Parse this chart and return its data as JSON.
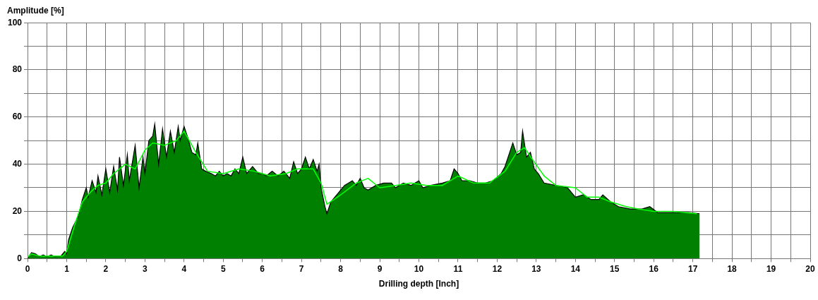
{
  "chart_data": {
    "type": "area",
    "xlabel": "Drilling depth [Inch]",
    "ylabel": "Amplitude [%]",
    "xlim": [
      0,
      20
    ],
    "ylim": [
      0,
      100
    ],
    "xticks": [
      0,
      {
        "value": 0.5,
        "label": null
      },
      1,
      {
        "value": 1.5,
        "label": null
      },
      2,
      {
        "value": 2.5,
        "label": null
      },
      3,
      {
        "value": 3.5,
        "label": null
      },
      4,
      {
        "value": 4.5,
        "label": null
      },
      5,
      {
        "value": 5.5,
        "label": null
      },
      6,
      {
        "value": 6.5,
        "label": null
      },
      7,
      {
        "value": 7.5,
        "label": null
      },
      8,
      {
        "value": 8.5,
        "label": null
      },
      9,
      {
        "value": 9.5,
        "label": null
      },
      10,
      {
        "value": 10.5,
        "label": null
      },
      11,
      {
        "value": 11.5,
        "label": null
      },
      12,
      {
        "value": 12.5,
        "label": null
      },
      13,
      {
        "value": 13.5,
        "label": null
      },
      14,
      {
        "value": 14.5,
        "label": null
      },
      15,
      {
        "value": 15.5,
        "label": null
      },
      16,
      {
        "value": 16.5,
        "label": null
      },
      17,
      {
        "value": 17.5,
        "label": null
      },
      18,
      {
        "value": 18.5,
        "label": null
      },
      19,
      {
        "value": 19.5,
        "label": null
      },
      20
    ],
    "yticks": [
      0,
      {
        "value": 10,
        "label": null
      },
      20,
      {
        "value": 30,
        "label": null
      },
      40,
      {
        "value": 50,
        "label": null
      },
      60,
      {
        "value": 70,
        "label": null
      },
      80,
      {
        "value": 90,
        "label": null
      },
      100
    ],
    "grid": true,
    "legend": false,
    "series": [
      {
        "color": "#008000",
        "x": [
          0,
          0.1,
          0.2,
          0.3,
          0.4,
          0.5,
          0.6,
          0.7,
          0.85,
          0.95,
          1.0,
          1.05,
          1.15,
          1.3,
          1.4,
          1.5,
          1.55,
          1.65,
          1.75,
          1.8,
          1.9,
          2.0,
          2.1,
          2.2,
          2.3,
          2.35,
          2.45,
          2.55,
          2.6,
          2.75,
          2.85,
          2.95,
          3.0,
          3.1,
          3.2,
          3.25,
          3.35,
          3.45,
          3.55,
          3.65,
          3.75,
          3.85,
          3.9,
          4.0,
          4.1,
          4.2,
          4.3,
          4.35,
          4.45,
          4.55,
          4.7,
          4.8,
          4.9,
          5.0,
          5.1,
          5.2,
          5.3,
          5.4,
          5.5,
          5.6,
          5.75,
          5.9,
          6.0,
          6.1,
          6.25,
          6.4,
          6.55,
          6.7,
          6.8,
          6.9,
          7.0,
          7.1,
          7.2,
          7.3,
          7.4,
          7.45,
          7.5,
          7.6,
          7.65,
          7.75,
          7.9,
          8.0,
          8.1,
          8.3,
          8.4,
          8.5,
          8.6,
          8.7,
          8.9,
          9.1,
          9.3,
          9.4,
          9.6,
          9.8,
          9.9,
          10.0,
          10.1,
          10.3,
          10.6,
          10.8,
          10.9,
          11.0,
          11.1,
          11.3,
          11.5,
          11.7,
          11.9,
          12.1,
          12.2,
          12.4,
          12.5,
          12.6,
          12.65,
          12.75,
          12.85,
          12.95,
          13.05,
          13.2,
          13.5,
          13.8,
          14.0,
          14.2,
          14.4,
          14.6,
          14.7,
          14.9,
          15.1,
          15.4,
          15.7,
          15.9,
          16.1,
          16.5,
          16.9,
          17.17
        ],
        "values": [
          0,
          2.5,
          2,
          0.8,
          1.5,
          0.8,
          1.5,
          0.8,
          1,
          3,
          2,
          8,
          13,
          18,
          25,
          30,
          26,
          33,
          28,
          35,
          27,
          38,
          28,
          39,
          29,
          43,
          31,
          44,
          33,
          48,
          30,
          43,
          36,
          50,
          52,
          57,
          40,
          55,
          43,
          54,
          45,
          56,
          50,
          56,
          51,
          45,
          44,
          49,
          38,
          37,
          36,
          35,
          37,
          35,
          36,
          35,
          38,
          36,
          43,
          36,
          39,
          36,
          36,
          35,
          37,
          35,
          37,
          34,
          41,
          36,
          38,
          43,
          38,
          42,
          37,
          40,
          30,
          22,
          19,
          24,
          27,
          29,
          31,
          33,
          31,
          34,
          30,
          29,
          31,
          32,
          32,
          30,
          32,
          31,
          32,
          33,
          30,
          31,
          32,
          33,
          38,
          36,
          33,
          33,
          32,
          32,
          33,
          36,
          39,
          49,
          44,
          45,
          54,
          43,
          45,
          38,
          36,
          32,
          31,
          30,
          26,
          27,
          25,
          25,
          27,
          24,
          22,
          21,
          21,
          22,
          19.5,
          19.5,
          19.5,
          19
        ]
      },
      {
        "type": "line",
        "color": "#00ff00",
        "x": [
          0,
          0.1,
          0.3,
          0.6,
          0.9,
          1.0,
          1.2,
          1.4,
          1.6,
          1.8,
          2.0,
          2.2,
          2.5,
          2.75,
          3.0,
          3.2,
          3.5,
          3.8,
          4.0,
          4.3,
          4.6,
          5.0,
          5.4,
          5.8,
          6.2,
          6.6,
          6.9,
          7.3,
          7.5,
          7.65,
          8.0,
          8.4,
          8.7,
          9.0,
          9.4,
          9.8,
          10.2,
          10.6,
          11.0,
          11.4,
          11.8,
          12.2,
          12.5,
          12.7,
          12.9,
          13.2,
          13.5,
          14.0,
          14.3,
          14.6,
          14.9,
          15.3,
          15.6,
          16.0,
          16.5,
          17.1
        ],
        "values": [
          0.5,
          2,
          1,
          1,
          1,
          3,
          14,
          24,
          28,
          31,
          32,
          36,
          40,
          38,
          46,
          49,
          48,
          50,
          54,
          45,
          37,
          36,
          38,
          37,
          35,
          36,
          38,
          38,
          32,
          23,
          27,
          32,
          34,
          30,
          31,
          32,
          31,
          31,
          35,
          32,
          32,
          37,
          45,
          47,
          42,
          35,
          31,
          30,
          26,
          26,
          24,
          22,
          21,
          20,
          20,
          19
        ]
      }
    ]
  }
}
